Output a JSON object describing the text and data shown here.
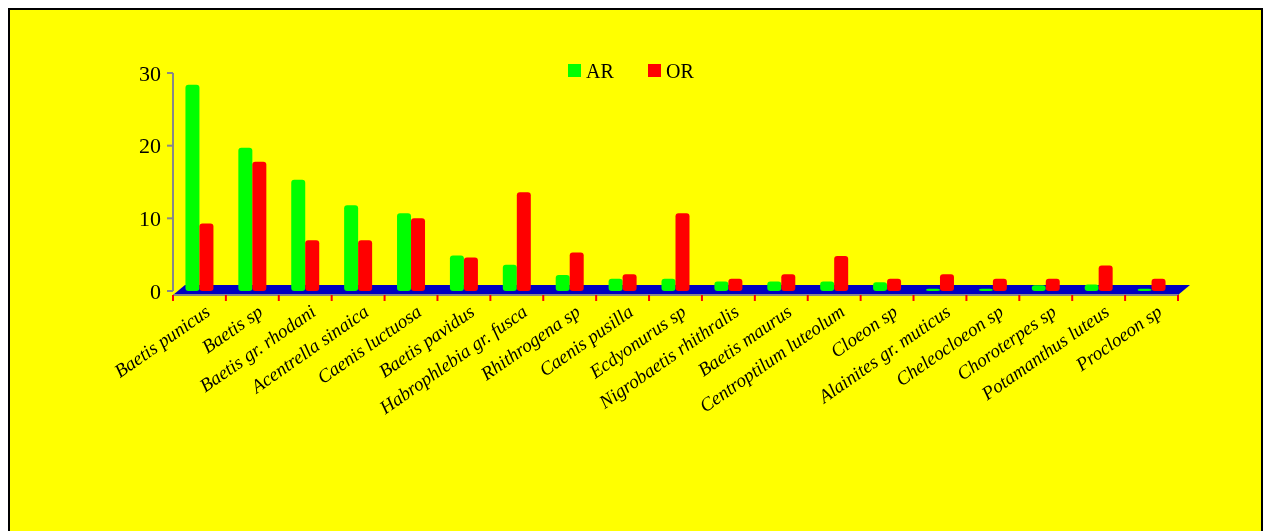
{
  "chart_data": {
    "type": "bar",
    "categories": [
      "Baetis punicus",
      "Baetis sp",
      "Baetis gr. rhodani",
      "Acentrella sinaica",
      "Caenis luctuosa",
      "Baetis pavidus",
      "Habrophlebia gr. fusca",
      "Rhithrogena sp",
      "Caenis pusilla",
      "Ecdyonurus sp",
      "Nigrobaetis rhithralis",
      "Baetis maurus",
      "Centroptilum luteolum",
      "Cloeon sp",
      "Alainites gr. muticus",
      "Cheleocloeon sp",
      "Choroterpes sp",
      "Potamanthus luteus",
      "Procloeon sp"
    ],
    "series": [
      {
        "name": "AR",
        "color": "#00ff00",
        "values": [
          28.4,
          19.7,
          15.3,
          11.8,
          10.7,
          4.9,
          3.6,
          2.2,
          1.7,
          1.7,
          1.3,
          1.3,
          1.3,
          1.2,
          0.3,
          0.3,
          0.8,
          0.9,
          0.3
        ]
      },
      {
        "name": "OR",
        "color": "#ff0000",
        "values": [
          9.3,
          17.8,
          7,
          7,
          10,
          4.6,
          13.6,
          5.3,
          2.3,
          10.7,
          1.7,
          2.3,
          4.8,
          1.7,
          2.3,
          1.7,
          1.7,
          3.5,
          1.7
        ]
      }
    ],
    "ylim": [
      0,
      30
    ],
    "yticks": [
      0,
      10,
      20,
      30
    ],
    "grid": false,
    "legend": "top"
  }
}
